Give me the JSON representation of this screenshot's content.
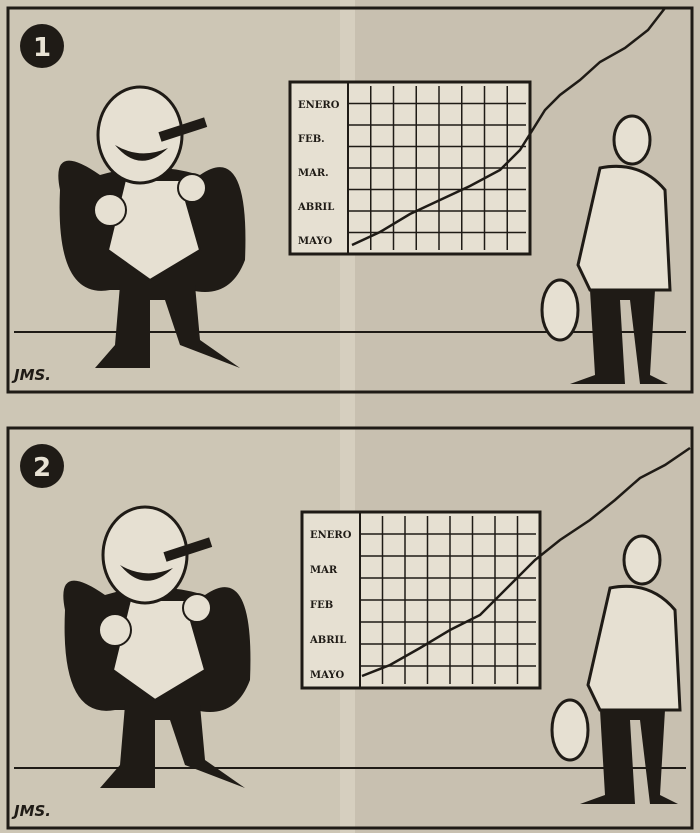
{
  "panels": [
    {
      "number": "1",
      "chart_labels": [
        "ENERO",
        "FEB.",
        "MAR.",
        "ABRIL",
        "MAYO"
      ],
      "signature": "JMS."
    },
    {
      "number": "2",
      "chart_labels": [
        "ENERO",
        "MAR",
        "FEB",
        "ABRIL",
        "MAYO"
      ],
      "signature": "JMS."
    }
  ]
}
